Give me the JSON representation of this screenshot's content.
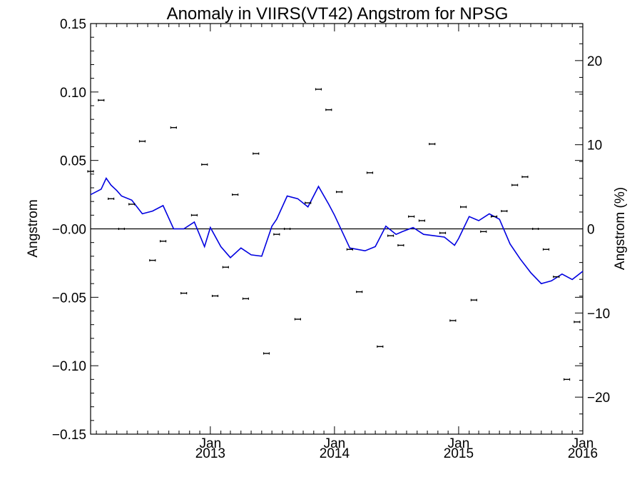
{
  "chart_data": {
    "type": "scatter",
    "title": "Anomaly in VIIRS(VT42) Angstrom for NPSG",
    "ylabel": "Angstrom",
    "y2label": "Angstrom (%)",
    "ylim": [
      -0.15,
      0.15
    ],
    "y2lim": [
      -24.4,
      24.4
    ],
    "xlim": [
      "2012-01-15",
      "2016-01-01"
    ],
    "y_ticks": [
      "0.15",
      "0.10",
      "0.05",
      "-0.00",
      "-0.05",
      "-0.10",
      "-0.15"
    ],
    "y2_ticks": [
      "20",
      "10",
      "0",
      "-10",
      "-20"
    ],
    "x_ticks": [
      {
        "date": "2013-01-01",
        "month": "Jan",
        "year": "2013"
      },
      {
        "date": "2014-01-01",
        "month": "Jan",
        "year": "2014"
      },
      {
        "date": "2015-01-01",
        "month": "Jan",
        "year": "2015"
      },
      {
        "date": "2016-01-01",
        "month": "Jan",
        "year": "2016"
      }
    ],
    "zero_line": true,
    "grid": false,
    "series": [
      {
        "style": "points-with-errorbars",
        "color": "#000000",
        "x": [
          "2012-01-15",
          "2012-02-15",
          "2012-03-15",
          "2012-04-15",
          "2012-05-15",
          "2012-06-15",
          "2012-07-15",
          "2012-08-15",
          "2012-09-15",
          "2012-10-15",
          "2012-11-15",
          "2012-12-15",
          "2013-01-15",
          "2013-02-15",
          "2013-03-15",
          "2013-04-15",
          "2013-05-15",
          "2013-06-15",
          "2013-07-15",
          "2013-08-15",
          "2013-09-15",
          "2013-10-15",
          "2013-11-15",
          "2013-12-15",
          "2014-01-15",
          "2014-02-15",
          "2014-03-15",
          "2014-04-15",
          "2014-05-15",
          "2014-06-15",
          "2014-07-15",
          "2014-08-15",
          "2014-09-15",
          "2014-10-15",
          "2014-11-15",
          "2014-12-15",
          "2015-01-15",
          "2015-02-15",
          "2015-03-15",
          "2015-04-15",
          "2015-05-15",
          "2015-06-15",
          "2015-07-15",
          "2015-08-15",
          "2015-09-15",
          "2015-10-15",
          "2015-11-15",
          "2015-12-15"
        ],
        "y": [
          0.042,
          0.094,
          0.022,
          0.0,
          0.018,
          0.064,
          -0.023,
          -0.009,
          0.074,
          -0.047,
          0.01,
          0.047,
          -0.049,
          -0.028,
          0.025,
          -0.051,
          0.055,
          -0.091,
          -0.004,
          0.0,
          -0.066,
          0.019,
          0.102,
          0.087,
          0.027,
          -0.015,
          -0.046,
          0.041,
          -0.086,
          -0.005,
          -0.012,
          0.009,
          0.006,
          0.062,
          -0.003,
          -0.067,
          0.016,
          -0.052,
          -0.002,
          0.009,
          0.013,
          0.032,
          0.038,
          0.0,
          -0.015,
          -0.035,
          -0.11,
          -0.068
        ],
        "err": 0.0008
      },
      {
        "style": "line",
        "color": "#0000e0",
        "x": [
          "2012-01-15",
          "2012-02-15",
          "2012-03-01",
          "2012-03-15",
          "2012-04-01",
          "2012-04-15",
          "2012-05-15",
          "2012-06-15",
          "2012-07-15",
          "2012-08-15",
          "2012-09-15",
          "2012-10-15",
          "2012-11-15",
          "2012-12-15",
          "2013-01-01",
          "2013-02-01",
          "2013-03-01",
          "2013-04-01",
          "2013-05-01",
          "2013-06-01",
          "2013-07-01",
          "2013-07-15",
          "2013-08-15",
          "2013-09-15",
          "2013-10-15",
          "2013-11-15",
          "2013-12-15",
          "2014-01-01",
          "2014-02-15",
          "2014-04-01",
          "2014-05-01",
          "2014-06-01",
          "2014-07-01",
          "2014-07-20",
          "2014-08-20",
          "2014-09-20",
          "2014-10-20",
          "2014-11-20",
          "2014-12-20",
          "2015-01-01",
          "2015-02-01",
          "2015-03-01",
          "2015-04-01",
          "2015-05-01",
          "2015-06-01",
          "2015-07-01",
          "2015-08-01",
          "2015-09-01",
          "2015-10-01",
          "2015-11-01",
          "2015-12-01",
          "2016-01-01"
        ],
        "y": [
          0.025,
          0.029,
          0.037,
          0.032,
          0.028,
          0.024,
          0.021,
          0.011,
          0.013,
          0.017,
          0.0,
          0.0,
          0.005,
          -0.013,
          0.001,
          -0.013,
          -0.021,
          -0.014,
          -0.019,
          -0.02,
          0.002,
          0.007,
          0.024,
          0.022,
          0.016,
          0.031,
          0.018,
          0.01,
          -0.014,
          -0.016,
          -0.013,
          0.002,
          -0.004,
          -0.002,
          0.001,
          -0.004,
          -0.005,
          -0.006,
          -0.012,
          -0.007,
          0.009,
          0.006,
          0.011,
          0.007,
          -0.011,
          -0.022,
          -0.032,
          -0.04,
          -0.038,
          -0.033,
          -0.037,
          -0.031
        ]
      }
    ]
  }
}
